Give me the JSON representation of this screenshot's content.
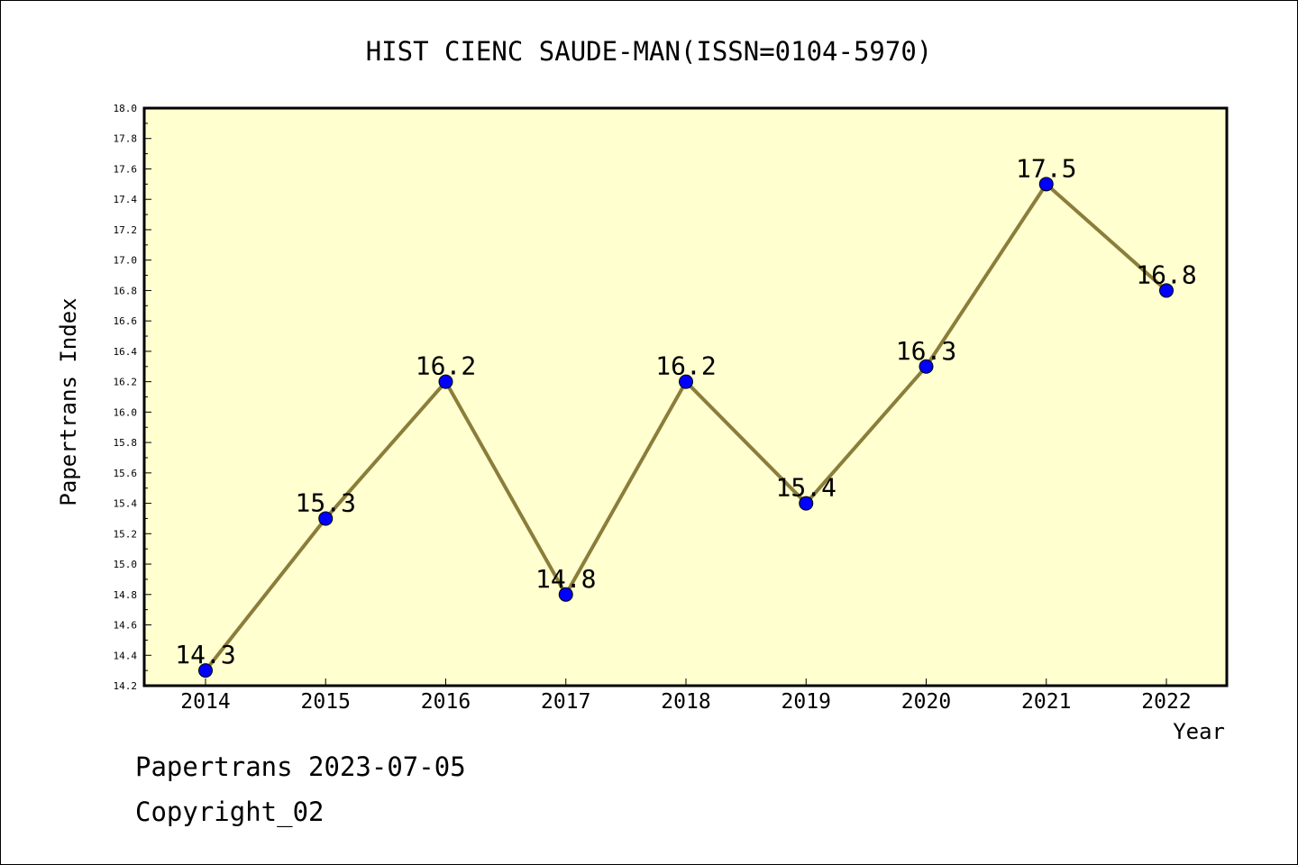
{
  "chart_data": {
    "type": "line",
    "title": "HIST CIENC SAUDE-MAN(ISSN=0104-5970)",
    "xlabel": "Year",
    "ylabel": "Papertrans Index",
    "categories": [
      "2014",
      "2015",
      "2016",
      "2017",
      "2018",
      "2019",
      "2020",
      "2021",
      "2022"
    ],
    "series": [
      {
        "values": [
          14.3,
          15.3,
          16.2,
          14.8,
          16.2,
          15.4,
          16.3,
          17.5,
          16.8
        ],
        "labels": [
          "14.3",
          "15.3",
          "16.2",
          "14.8",
          "16.2",
          "15.4",
          "16.3",
          "17.5",
          "16.8"
        ]
      }
    ],
    "ylim": [
      14.2,
      18.0
    ],
    "yticks": [
      "14.2",
      "14.4",
      "14.6",
      "14.8",
      "15.0",
      "15.2",
      "15.4",
      "15.6",
      "15.8",
      "16.0",
      "16.2",
      "16.4",
      "16.6",
      "16.8",
      "17.0",
      "17.2",
      "17.4",
      "17.6",
      "17.8",
      "18.0"
    ],
    "grid": false,
    "colors": {
      "plot_background": "#ffffd0",
      "line": "#8b7d3a",
      "marker": "#0000ff"
    }
  },
  "footer": {
    "date_line": "Papertrans 2023-07-05",
    "copyright": "Copyright_02"
  }
}
